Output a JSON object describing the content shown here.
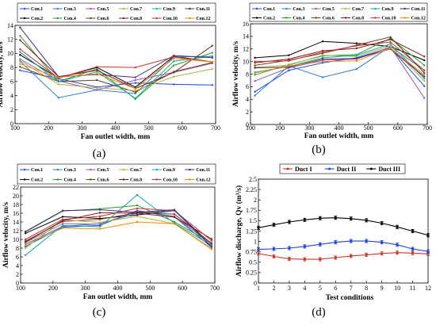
{
  "figure": {
    "panel_labels": [
      "(a)",
      "(b)",
      "(c)",
      "(d)"
    ]
  },
  "series_colors": [
    "#1f4fd8",
    "#000000",
    "#2e7fd0",
    "#27a12b",
    "#9b59b6",
    "#6b3f1f",
    "#b0b040",
    "#7a1f1f",
    "#14a8a8",
    "#cc3333",
    "#4b2a7a",
    "#f08a00"
  ],
  "chart_data": [
    {
      "type": "line",
      "panel": "(a)",
      "xlabel": "Fan outlet width, mm",
      "ylabel": "Airflow velocity,  m/s",
      "xlim": [
        100,
        700
      ],
      "ylim": [
        0,
        14
      ],
      "xticks": [
        100,
        200,
        300,
        400,
        500,
        600,
        700
      ],
      "yticks": [
        0,
        2,
        4,
        6,
        8,
        10,
        12,
        14
      ],
      "x": [
        115,
        230,
        345,
        460,
        575,
        690
      ],
      "legend_position": "top",
      "series": [
        {
          "name": "Con.1",
          "values": [
            7.6,
            6.4,
            5.2,
            5.8,
            5.6,
            5.5
          ]
        },
        {
          "name": "Con.2",
          "values": [
            9.8,
            6.5,
            8.0,
            5.2,
            9.6,
            8.8
          ]
        },
        {
          "name": "Con.3",
          "values": [
            8.9,
            3.7,
            4.8,
            4.3,
            9.5,
            9.6
          ]
        },
        {
          "name": "Con.4",
          "values": [
            12.5,
            6.0,
            7.8,
            3.5,
            8.3,
            10.1
          ]
        },
        {
          "name": "Con.5",
          "values": [
            9.2,
            6.1,
            4.8,
            6.2,
            7.3,
            8.6
          ]
        },
        {
          "name": "Con.6",
          "values": [
            8.1,
            6.0,
            6.2,
            4.5,
            7.4,
            8.7
          ]
        },
        {
          "name": "Con.7",
          "values": [
            9.0,
            5.6,
            5.1,
            4.7,
            6.7,
            7.8
          ]
        },
        {
          "name": "Con.8",
          "values": [
            11.9,
            6.7,
            7.6,
            5.0,
            7.3,
            11.1
          ]
        },
        {
          "name": "Con.9",
          "values": [
            10.2,
            6.0,
            7.4,
            3.6,
            8.9,
            9.6
          ]
        },
        {
          "name": "Con.10",
          "values": [
            10.6,
            6.5,
            8.1,
            8.0,
            9.5,
            8.8
          ]
        },
        {
          "name": "Con.11",
          "values": [
            13.7,
            6.7,
            7.0,
            6.6,
            9.7,
            9.4
          ]
        },
        {
          "name": "Con.12",
          "values": [
            8.5,
            6.6,
            7.1,
            5.0,
            9.3,
            8.8
          ]
        }
      ]
    },
    {
      "type": "line",
      "panel": "(b)",
      "xlabel": "Fan outlet width, mm",
      "ylabel": "Airflow velocity, m/s",
      "xlim": [
        100,
        700
      ],
      "ylim": [
        0,
        16
      ],
      "xticks": [
        100,
        200,
        300,
        400,
        500,
        600,
        700
      ],
      "yticks": [
        0,
        2,
        4,
        6,
        8,
        10,
        12,
        14,
        16
      ],
      "x": [
        115,
        230,
        345,
        460,
        575,
        690
      ],
      "legend_position": "top",
      "series": [
        {
          "name": "Con.1",
          "values": [
            5.2,
            8.6,
            9.8,
            10.6,
            12.2,
            6.1
          ]
        },
        {
          "name": "Con.2",
          "values": [
            10.6,
            11.0,
            13.2,
            12.9,
            12.4,
            10.2
          ]
        },
        {
          "name": "Con.3",
          "values": [
            4.6,
            9.3,
            7.5,
            8.8,
            12.4,
            8.6
          ]
        },
        {
          "name": "Con.4",
          "values": [
            7.9,
            9.5,
            10.9,
            11.1,
            13.7,
            9.4
          ]
        },
        {
          "name": "Con.5",
          "values": [
            6.9,
            9.0,
            10.2,
            10.4,
            12.3,
            4.2
          ]
        },
        {
          "name": "Con.6",
          "values": [
            9.4,
            10.2,
            11.3,
            12.6,
            13.9,
            8.2
          ]
        },
        {
          "name": "Con.7",
          "values": [
            9.1,
            9.4,
            11.0,
            10.8,
            12.5,
            6.9
          ]
        },
        {
          "name": "Con.8",
          "values": [
            9.8,
            10.4,
            11.7,
            12.1,
            13.5,
            10.8
          ]
        },
        {
          "name": "Con.9",
          "values": [
            8.3,
            9.2,
            10.6,
            11.0,
            12.8,
            7.3
          ]
        },
        {
          "name": "Con.10",
          "values": [
            10.0,
            10.1,
            11.5,
            12.5,
            13.1,
            8.6
          ]
        },
        {
          "name": "Con.11",
          "values": [
            9.0,
            9.1,
            10.4,
            10.5,
            12.0,
            7.6
          ]
        },
        {
          "name": "Con.12",
          "values": [
            8.2,
            9.3,
            10.0,
            10.1,
            12.1,
            7.9
          ]
        }
      ]
    },
    {
      "type": "line",
      "panel": "(c)",
      "xlabel": "Fan outlet width, mm",
      "ylabel": "Airflow velocity, m/s",
      "xlim": [
        100,
        700
      ],
      "ylim": [
        0,
        22
      ],
      "xticks": [
        100,
        200,
        300,
        400,
        500,
        600,
        700
      ],
      "yticks": [
        0,
        2,
        4,
        6,
        8,
        10,
        12,
        14,
        16,
        18,
        20,
        22
      ],
      "x": [
        115,
        230,
        345,
        460,
        575,
        690
      ],
      "legend_position": "top",
      "series": [
        {
          "name": "Con.1",
          "values": [
            8.4,
            12.8,
            13.2,
            16.6,
            15.2,
            8.2
          ]
        },
        {
          "name": "Con.2",
          "values": [
            11.4,
            15.2,
            14.8,
            15.6,
            16.6,
            8.8
          ]
        },
        {
          "name": "Con.3",
          "values": [
            8.9,
            13.0,
            13.6,
            16.0,
            16.6,
            8.4
          ]
        },
        {
          "name": "Con.4",
          "values": [
            11.7,
            16.5,
            17.0,
            17.8,
            14.0,
            9.2
          ]
        },
        {
          "name": "Con.5",
          "values": [
            9.3,
            13.6,
            13.5,
            16.4,
            15.3,
            8.9
          ]
        },
        {
          "name": "Con.6",
          "values": [
            9.6,
            14.1,
            14.6,
            16.1,
            15.8,
            9.1
          ]
        },
        {
          "name": "Con.7",
          "values": [
            8.0,
            14.5,
            13.9,
            15.3,
            13.6,
            7.7
          ]
        },
        {
          "name": "Con.8",
          "values": [
            9.4,
            14.3,
            16.1,
            16.0,
            15.1,
            10.1
          ]
        },
        {
          "name": "Con.9",
          "values": [
            6.4,
            13.2,
            12.9,
            20.2,
            13.7,
            8.6
          ]
        },
        {
          "name": "Con.10",
          "values": [
            10.0,
            14.6,
            15.3,
            17.1,
            16.6,
            9.7
          ]
        },
        {
          "name": "Con.11",
          "values": [
            11.8,
            16.6,
            16.8,
            16.2,
            16.8,
            8.3
          ]
        },
        {
          "name": "Con.12",
          "values": [
            8.8,
            12.6,
            12.4,
            14.0,
            13.6,
            7.9
          ]
        }
      ]
    },
    {
      "type": "line",
      "panel": "(d)",
      "xlabel": "Test conditions",
      "ylabel": "Airflow discharge, Qv (m³/s)",
      "xlim": [
        1,
        12
      ],
      "ylim": [
        0,
        2.5
      ],
      "xticks": [
        1,
        2,
        3,
        4,
        5,
        6,
        7,
        8,
        9,
        10,
        11,
        12
      ],
      "yticks": [
        0,
        0.25,
        0.5,
        0.75,
        1,
        1.25,
        1.5,
        1.75,
        2,
        2.25,
        2.5
      ],
      "ytick_labels": [
        "0",
        "0.25",
        "0.5",
        "0.75",
        "1",
        "1.25",
        "1.5",
        "1.75",
        "2",
        "2.25",
        "2.5"
      ],
      "x": [
        1,
        2,
        3,
        4,
        5,
        6,
        7,
        8,
        9,
        10,
        11,
        12
      ],
      "legend_position": "top",
      "error_bars": true,
      "series": [
        {
          "name": "Duct I",
          "color": "#c0392b",
          "values": [
            0.71,
            0.64,
            0.58,
            0.57,
            0.57,
            0.61,
            0.65,
            0.68,
            0.71,
            0.73,
            0.72,
            0.7
          ]
        },
        {
          "name": "Duct II",
          "color": "#1f3fd8",
          "values": [
            0.81,
            0.82,
            0.84,
            0.88,
            0.93,
            0.98,
            1.01,
            1.01,
            0.98,
            0.92,
            0.82,
            0.76
          ]
        },
        {
          "name": "Duct III",
          "color": "#000000",
          "values": [
            1.33,
            1.4,
            1.47,
            1.52,
            1.56,
            1.57,
            1.55,
            1.51,
            1.44,
            1.35,
            1.25,
            1.15
          ]
        }
      ]
    }
  ]
}
